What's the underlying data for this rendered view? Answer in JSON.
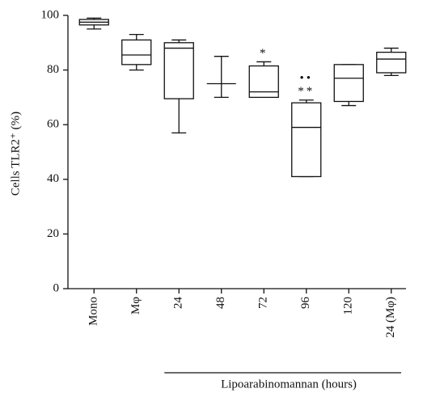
{
  "chart_data": {
    "type": "box",
    "ylabel": "Cells TLR2⁺ (%)",
    "categories": [
      "Mono",
      "Mφ",
      "24",
      "48",
      "72",
      "96",
      "120",
      "24 (Mφ)"
    ],
    "boxes": [
      {
        "min": 95,
        "q1": 96.5,
        "median": 97.5,
        "q3": 98.5,
        "max": 99
      },
      {
        "min": 80,
        "q1": 82,
        "median": 85.5,
        "q3": 91,
        "max": 93
      },
      {
        "min": 57,
        "q1": 69.5,
        "median": 88,
        "q3": 90,
        "max": 91
      },
      {
        "min": 70,
        "q1": 75,
        "median": 75,
        "q3": 75,
        "max": 85
      },
      {
        "min": 70,
        "q1": 70,
        "median": 72,
        "q3": 81.5,
        "max": 83
      },
      {
        "min": 41,
        "q1": 41,
        "median": 59,
        "q3": 68,
        "max": 69
      },
      {
        "min": 67,
        "q1": 68.5,
        "median": 77,
        "q3": 82,
        "max": 82
      },
      {
        "min": 78,
        "q1": 79,
        "median": 84,
        "q3": 86.5,
        "max": 88
      }
    ],
    "annotations": [
      {
        "category": "72",
        "text": "*"
      },
      {
        "category": "96",
        "text": "**"
      },
      {
        "category": "96",
        "text": "••"
      }
    ],
    "group_label": "Lipoarabinomannan (hours)",
    "ylim": [
      0,
      100
    ],
    "yticks": [
      0,
      20,
      40,
      60,
      80,
      100
    ]
  }
}
